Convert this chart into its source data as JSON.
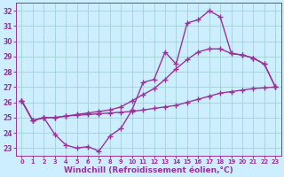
{
  "xlabel": "Windchill (Refroidissement éolien,°C)",
  "x": [
    0,
    1,
    2,
    3,
    4,
    5,
    6,
    7,
    8,
    9,
    10,
    11,
    12,
    13,
    14,
    15,
    16,
    17,
    18,
    19,
    20,
    21,
    22,
    23
  ],
  "line1": [
    26.1,
    24.8,
    25.0,
    23.9,
    23.2,
    23.0,
    23.1,
    22.8,
    23.8,
    24.3,
    25.5,
    27.3,
    27.5,
    29.3,
    28.5,
    31.2,
    31.4,
    32.0,
    31.6,
    29.2,
    29.1,
    28.9,
    28.5,
    27.0
  ],
  "line2": [
    26.1,
    24.8,
    25.0,
    25.0,
    25.1,
    25.15,
    25.2,
    25.25,
    25.3,
    25.35,
    25.4,
    25.5,
    25.6,
    25.7,
    25.8,
    26.0,
    26.2,
    26.4,
    26.6,
    26.7,
    26.8,
    26.9,
    26.95,
    27.0
  ],
  "line3": [
    26.1,
    24.8,
    25.0,
    25.0,
    25.1,
    25.2,
    25.3,
    25.4,
    25.5,
    25.7,
    26.1,
    26.5,
    26.9,
    27.5,
    28.2,
    28.8,
    29.3,
    29.5,
    29.5,
    29.2,
    29.1,
    28.9,
    28.5,
    27.0
  ],
  "color": "#993399",
  "bg_color": "#cceeff",
  "grid_color": "#99cccc",
  "ylim": [
    22.5,
    32.5
  ],
  "xlim": [
    -0.5,
    23.5
  ],
  "yticks": [
    23,
    24,
    25,
    26,
    27,
    28,
    29,
    30,
    31,
    32
  ],
  "xticks": [
    0,
    1,
    2,
    3,
    4,
    5,
    6,
    7,
    8,
    9,
    10,
    11,
    12,
    13,
    14,
    15,
    16,
    17,
    18,
    19,
    20,
    21,
    22,
    23
  ],
  "marker": "+",
  "markersize": 4,
  "linewidth": 1.0,
  "xlabel_fontsize": 6.5,
  "tick_fontsize": 5.5
}
